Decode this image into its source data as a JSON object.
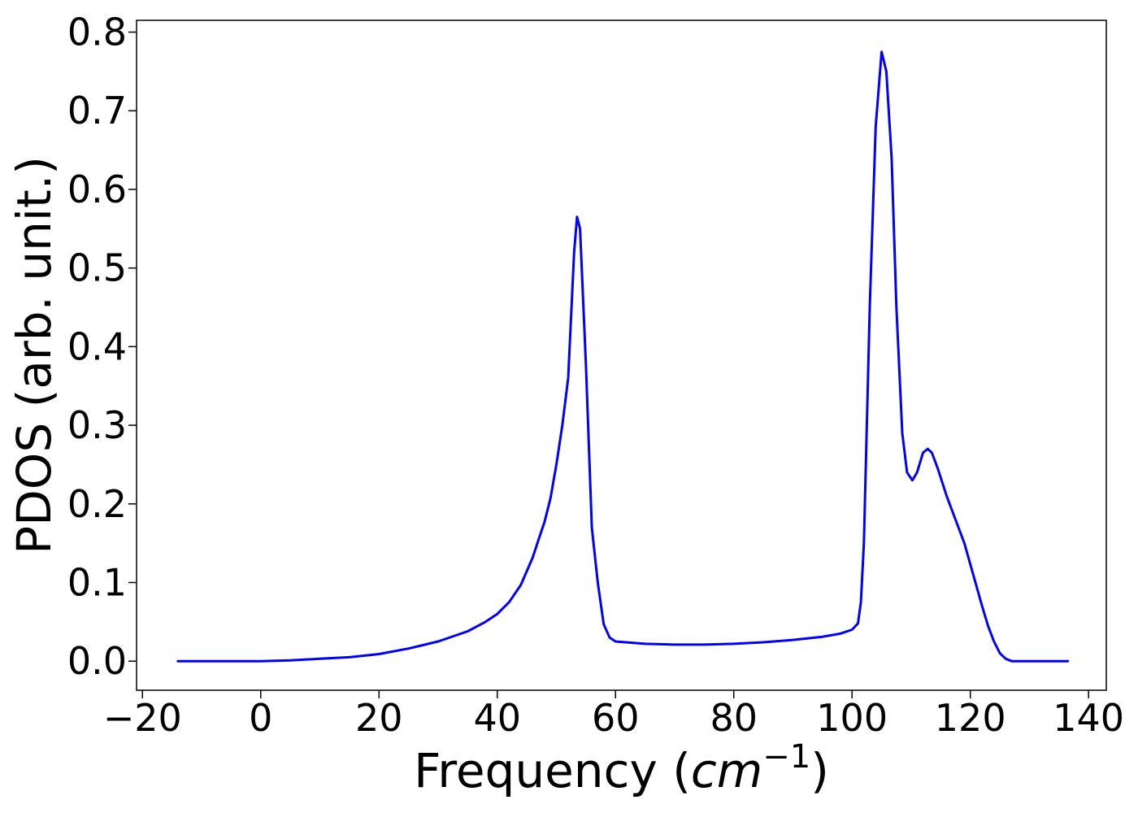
{
  "chart_data": {
    "type": "line",
    "title": "",
    "xlabel": "Frequency",
    "xlabel_unit_base": "cm",
    "xlabel_unit_exp": "−1",
    "ylabel": "PDOS (arb. unit.)",
    "xlim": [
      -21,
      143
    ],
    "ylim": [
      -0.037,
      0.815
    ],
    "x_ticks": [
      -20,
      0,
      20,
      40,
      60,
      80,
      100,
      120,
      140
    ],
    "x_tick_labels": [
      "−20",
      "0",
      "20",
      "40",
      "60",
      "80",
      "100",
      "120",
      "140"
    ],
    "y_ticks": [
      0.0,
      0.1,
      0.2,
      0.3,
      0.4,
      0.5,
      0.6,
      0.7,
      0.8
    ],
    "y_tick_labels": [
      "0.0",
      "0.1",
      "0.2",
      "0.3",
      "0.4",
      "0.5",
      "0.6",
      "0.7",
      "0.8"
    ],
    "grid": false,
    "series": [
      {
        "color": "#0000ff",
        "x": [
          -14,
          0,
          5,
          10,
          15,
          20,
          25,
          30,
          35,
          38,
          40,
          42,
          44,
          46,
          47,
          48,
          49,
          50,
          51,
          52,
          53,
          53.5,
          54,
          55,
          56,
          57,
          58,
          59,
          60,
          65,
          70,
          75,
          80,
          85,
          90,
          95,
          98,
          100,
          101,
          101.5,
          102,
          103,
          104,
          105,
          105.8,
          106.7,
          107.5,
          108.5,
          109.3,
          110.2,
          111,
          112,
          112.8,
          113.5,
          114.5,
          116,
          117.5,
          119,
          120.5,
          122,
          123,
          124,
          125,
          126,
          127,
          130,
          136.5
        ],
        "y": [
          0.0,
          0.0,
          0.001,
          0.003,
          0.005,
          0.009,
          0.016,
          0.025,
          0.038,
          0.05,
          0.06,
          0.075,
          0.097,
          0.132,
          0.155,
          0.177,
          0.207,
          0.25,
          0.3,
          0.36,
          0.52,
          0.565,
          0.55,
          0.375,
          0.17,
          0.1,
          0.047,
          0.03,
          0.025,
          0.022,
          0.021,
          0.021,
          0.022,
          0.024,
          0.027,
          0.031,
          0.035,
          0.04,
          0.048,
          0.075,
          0.15,
          0.45,
          0.68,
          0.775,
          0.75,
          0.64,
          0.45,
          0.29,
          0.24,
          0.23,
          0.24,
          0.265,
          0.27,
          0.265,
          0.245,
          0.21,
          0.18,
          0.15,
          0.11,
          0.07,
          0.045,
          0.025,
          0.01,
          0.003,
          0.0,
          0.0,
          0.0
        ]
      }
    ]
  }
}
